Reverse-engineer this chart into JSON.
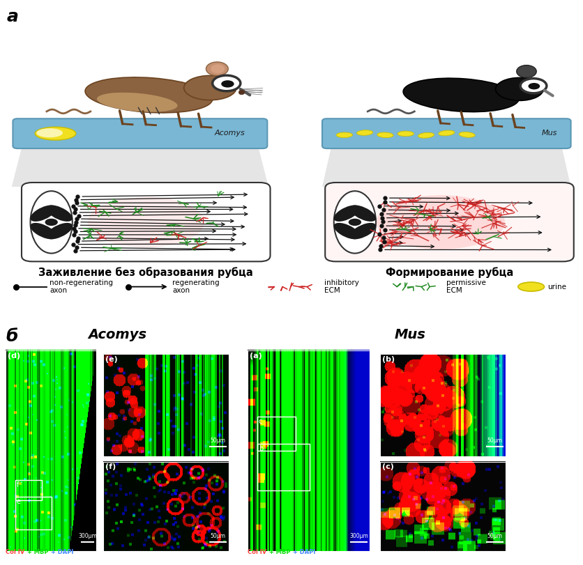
{
  "title_a": "а",
  "title_b": "б",
  "label_acomys": "Acomys",
  "label_mus": "Mus",
  "caption_left": "Заживление без образования рубца",
  "caption_right": "Формирование рубца",
  "bg_color": "#ffffff",
  "table_color": "#7ab7d4",
  "table_edge": "#5a97b4",
  "mouse_brown": "#8B6340",
  "mouse_brown_dark": "#6B4320",
  "mouse_black": "#111111",
  "cone_color": "#d0d0d0",
  "cylinder_fill_left": "#ffffff",
  "cylinder_fill_right": "#fff5f5",
  "cross_black": "#1a1a1a",
  "axon_color": "#111111",
  "ecm_red": "#cc2222",
  "ecm_green": "#228B22",
  "urine_color": "#f0e020",
  "urine_edge": "#c8bc00",
  "scale_large": "300μm",
  "scale_small": "50μm"
}
